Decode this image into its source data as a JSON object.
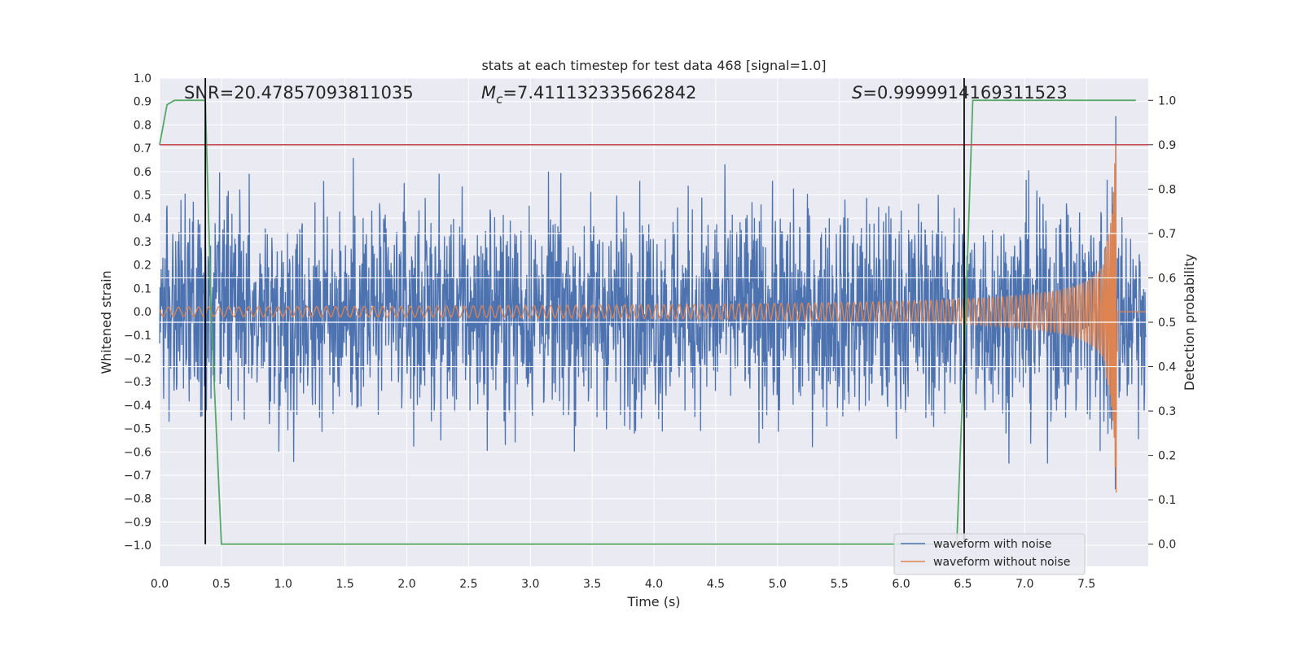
{
  "chart_data": {
    "type": "line",
    "title": "stats at each timestep for test data 468 [signal=1.0]",
    "xlabel": "Time (s)",
    "ylabel": "Whitened strain",
    "y2label": "Detection probability",
    "xlim": [
      0.0,
      8.0
    ],
    "ylim": [
      -1.09,
      1.0
    ],
    "y2lim": [
      -0.05,
      1.05
    ],
    "xticks": [
      "0.0",
      "0.5",
      "1.0",
      "1.5",
      "2.0",
      "2.5",
      "3.0",
      "3.5",
      "4.0",
      "4.5",
      "5.0",
      "5.5",
      "6.0",
      "6.5",
      "7.0",
      "7.5"
    ],
    "yticks": [
      "1.0",
      "0.9",
      "0.8",
      "0.7",
      "0.6",
      "0.5",
      "0.4",
      "0.3",
      "0.2",
      "0.1",
      "0.0",
      "−0.1",
      "−0.2",
      "−0.3",
      "−0.4",
      "−0.5",
      "−0.6",
      "−0.7",
      "−0.8",
      "−0.9",
      "−1.0"
    ],
    "y2ticks": [
      "1.0",
      "0.9",
      "0.8",
      "0.7",
      "0.6",
      "0.5",
      "0.4",
      "0.3",
      "0.2",
      "0.1",
      "0.0"
    ],
    "grid": true,
    "legend": "lower-right",
    "annotations": {
      "snr": "SNR=20.47857093811035",
      "mc_symbol": "M",
      "mc_sub": "c",
      "mc_value": "=7.411132335662842",
      "s_symbol": "S",
      "s_value": "=0.9999914169311523"
    },
    "series": [
      {
        "name": "waveform with noise",
        "color": "#4c72b0",
        "axis": "left",
        "description_values": {
          "typical_amplitude": 0.45,
          "max": 0.89,
          "min": -1.0
        }
      },
      {
        "name": "waveform without noise",
        "color": "#dd8452",
        "axis": "left",
        "chirp": {
          "t_start": 0.0,
          "t_merger": 7.75,
          "amp_start": 0.02,
          "amp_peak_pos": 0.8,
          "amp_peak_neg": -0.47
        }
      },
      {
        "color": "#55a868",
        "axis": "right",
        "x": [
          0.0,
          0.06,
          0.12,
          0.2,
          0.3,
          0.37,
          0.42,
          0.5,
          6.45,
          6.52,
          6.58,
          6.65,
          7.0,
          7.9
        ],
        "values": [
          0.9,
          0.99,
          1.0,
          1.0,
          1.0,
          1.0,
          0.5,
          0.0,
          0.0,
          0.5,
          1.0,
          1.0,
          1.0,
          1.0
        ]
      }
    ],
    "threshold_line": {
      "color": "#c44e52",
      "y2": 0.9
    },
    "vertical_lines": {
      "color": "#000000",
      "x": [
        0.37,
        6.51
      ]
    },
    "legend_entries": [
      "waveform with noise",
      "waveform without noise"
    ]
  }
}
